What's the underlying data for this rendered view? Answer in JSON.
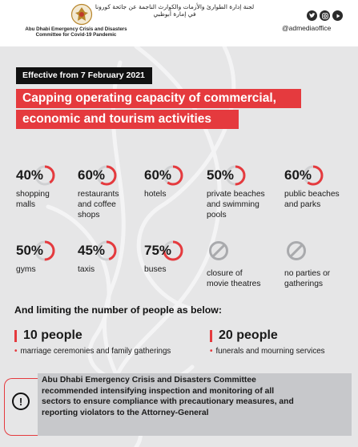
{
  "header": {
    "committee_ar": "لجنة إدارة الطوارئ والأزمات والكوارث الناجمة عن جائحة كورونا في إمارة أبوظبي",
    "committee_en_line1": "Abu Dhabi Emergency Crisis and Disasters",
    "committee_en_line2": "Committee for Covid-19 Pandemic",
    "social_handle": "@admediaoffice",
    "social_icons": [
      "twitter-icon",
      "instagram-icon",
      "youtube-icon"
    ]
  },
  "effective_label": "Effective from 7 February 2021",
  "headline": {
    "line1": "Capping operating capacity of commercial,",
    "line2": "economic and tourism activities"
  },
  "colors": {
    "accent": "#e53a3e",
    "background": "#e6e6e7",
    "dark": "#111111"
  },
  "capacity_items": [
    {
      "percent": "40%",
      "value": 40,
      "label": [
        "shopping",
        "malls"
      ]
    },
    {
      "percent": "60%",
      "value": 60,
      "label": [
        "restaurants",
        "and coffee",
        "shops"
      ]
    },
    {
      "percent": "60%",
      "value": 60,
      "label": [
        "hotels"
      ]
    },
    {
      "percent": "50%",
      "value": 50,
      "label": [
        "private beaches",
        "and swimming",
        "pools"
      ]
    },
    {
      "percent": "60%",
      "value": 60,
      "label": [
        "public beaches",
        "and parks"
      ]
    },
    {
      "percent": "50%",
      "value": 50,
      "label": [
        "gyms"
      ]
    },
    {
      "percent": "45%",
      "value": 45,
      "label": [
        "taxis"
      ]
    },
    {
      "percent": "75%",
      "value": 75,
      "label": [
        "buses"
      ]
    },
    {
      "percent": "",
      "value": 0,
      "icon": "prohibited-icon",
      "label": [
        "closure of",
        "movie theatres"
      ]
    },
    {
      "percent": "",
      "value": 0,
      "icon": "prohibited-icon",
      "label": [
        "no parties or",
        "gatherings"
      ]
    }
  ],
  "limit_heading": "And limiting the number of people as below:",
  "people_limits": [
    {
      "count": "10 people",
      "description": "marriage ceremonies and family gatherings"
    },
    {
      "count": "20 people",
      "description": "funerals and mourning services"
    }
  ],
  "warning": {
    "icon": "exclamation-icon",
    "line1": "Abu Dhabi Emergency Crisis and Disasters Committee",
    "line2": "recommended intensifying inspection and monitoring of all",
    "line3": "sectors to ensure compliance with precautionary measures, and",
    "line4": "reporting violators to the Attorney-General"
  }
}
